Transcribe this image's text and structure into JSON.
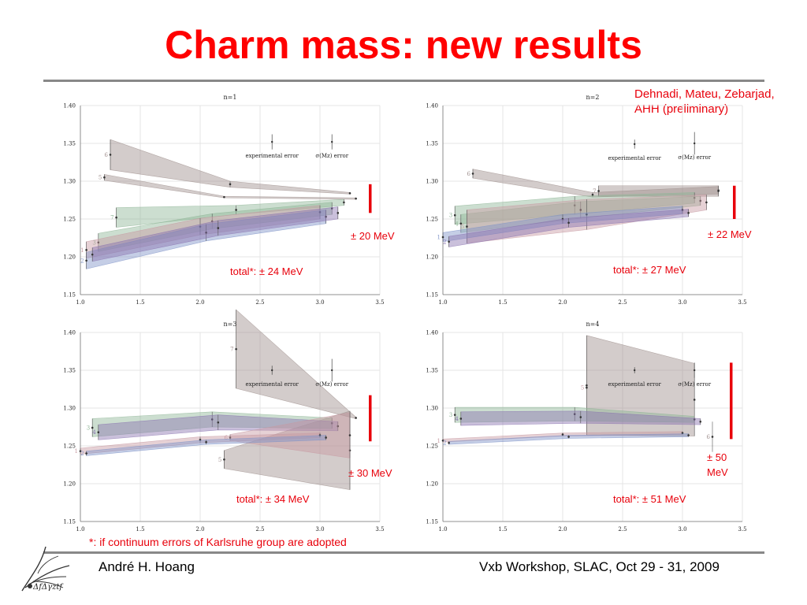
{
  "title": "Charm mass: new results",
  "authors": [
    "Dehnadi, Mateu, Zebarjad,",
    "AHH (preliminary)"
  ],
  "footnote": "*: if continuum errors of Karlsruhe group are adopted",
  "footer": {
    "left": "André H. Hoang",
    "right": "Vxb Workshop, SLAC, Oct 29 - 31, 2009"
  },
  "logo": {
    "icon": "bird-logo-icon",
    "caption": "ΔfΔγztf"
  },
  "colors": {
    "accent": "#ff0000",
    "red_bar": "#e8000b",
    "band_grey": "#9e8e8c",
    "band_green": "#8fb596",
    "band_purple": "#8a74b0",
    "band_blue": "#7f93c8",
    "band_pink": "#c79aa2"
  },
  "chart_data": [
    {
      "type": "line",
      "title": "n=1",
      "xlim": [
        1.0,
        3.5
      ],
      "ylim": [
        1.15,
        1.4
      ],
      "xticks": [
        "1.0",
        "1.5",
        "2.0",
        "2.5",
        "3.0",
        "3.5"
      ],
      "yticks": [
        "1.15",
        "1.20",
        "1.25",
        "1.30",
        "1.35",
        "1.40"
      ],
      "grid": true,
      "annotations": [
        "experimental error",
        "σ(Mz) error"
      ],
      "error_bars": [
        {
          "x": 2.6,
          "y": 1.352,
          "err": 0.01
        },
        {
          "x": 3.1,
          "y": 1.352,
          "err": 0.01
        }
      ],
      "red_bar_label": "± 20 MeV",
      "red_bar_range": [
        1.258,
        1.296
      ],
      "total_label": "total*: ± 24 MeV",
      "series": [
        {
          "label": "6",
          "color": "grey",
          "points": [
            [
              1.25,
              1.335,
              0.02
            ],
            [
              2.25,
              1.296,
              0.004
            ],
            [
              3.25,
              1.284,
              0.001
            ]
          ]
        },
        {
          "label": "5",
          "color": "grey",
          "points": [
            [
              1.2,
              1.305,
              0.004
            ],
            [
              2.2,
              1.279,
              0.001
            ],
            [
              3.3,
              1.277,
              0.001
            ]
          ]
        },
        {
          "label": "7",
          "color": "green",
          "points": [
            [
              1.3,
              1.252,
              0.013
            ],
            [
              2.3,
              1.262,
              0.006
            ],
            [
              3.2,
              1.272,
              0.004
            ]
          ]
        },
        {
          "label": "3",
          "color": "green",
          "points": [
            [
              1.15,
              1.219,
              0.012
            ],
            [
              2.1,
              1.247,
              0.01
            ],
            [
              3.1,
              1.264,
              0.008
            ]
          ]
        },
        {
          "label": "1",
          "color": "pink",
          "points": [
            [
              1.05,
              1.209,
              0.011
            ],
            [
              2.0,
              1.24,
              0.011
            ],
            [
              3.0,
              1.259,
              0.009
            ]
          ]
        },
        {
          "label": "2",
          "color": "blue",
          "points": [
            [
              1.05,
              1.195,
              0.011
            ],
            [
              2.05,
              1.232,
              0.011
            ],
            [
              3.05,
              1.253,
              0.009
            ]
          ]
        },
        {
          "label": "",
          "color": "purple",
          "points": [
            [
              1.1,
              1.203,
              0.009
            ],
            [
              2.15,
              1.238,
              0.01
            ],
            [
              3.15,
              1.258,
              0.008
            ]
          ]
        }
      ]
    },
    {
      "type": "line",
      "title": "n=2",
      "xlim": [
        1.0,
        3.5
      ],
      "ylim": [
        1.15,
        1.4
      ],
      "xticks": [
        "1.0",
        "1.5",
        "2.0",
        "2.5",
        "3.0",
        "3.5"
      ],
      "yticks": [
        "1.15",
        "1.20",
        "1.25",
        "1.30",
        "1.35",
        "1.40"
      ],
      "grid": true,
      "annotations": [
        "experimental error",
        "σ(Mz) error"
      ],
      "error_bars": [
        {
          "x": 2.6,
          "y": 1.349,
          "err": 0.006
        },
        {
          "x": 3.1,
          "y": 1.35,
          "err": 0.015
        }
      ],
      "red_bar_label": "± 22 MeV",
      "red_bar_range": [
        1.25,
        1.294
      ],
      "total_label": "total*: ± 27 MeV",
      "series": [
        {
          "label": "6",
          "color": "grey",
          "points": [
            [
              1.25,
              1.31,
              0.006
            ],
            [
              2.25,
              1.282,
              0.003
            ],
            [
              3.3,
              1.288,
              0.005
            ]
          ]
        },
        {
          "label": "7",
          "color": "grey",
          "points": [
            [
              2.3,
              1.287,
              0.007
            ],
            [
              3.3,
              1.287,
              0.007
            ]
          ]
        },
        {
          "label": "3",
          "color": "green",
          "points": [
            [
              1.1,
              1.255,
              0.012
            ],
            [
              2.1,
              1.268,
              0.012
            ],
            [
              3.1,
              1.278,
              0.007
            ]
          ]
        },
        {
          "label": "4",
          "color": "green",
          "points": [
            [
              1.15,
              1.244,
              0.012
            ],
            [
              2.15,
              1.262,
              0.011
            ],
            [
              3.15,
              1.274,
              0.006
            ]
          ]
        },
        {
          "label": "5",
          "color": "pink",
          "points": [
            [
              1.2,
              1.24,
              0.022
            ],
            [
              2.2,
              1.256,
              0.02
            ],
            [
              3.2,
              1.272,
              0.01
            ]
          ]
        },
        {
          "label": "1",
          "color": "blue",
          "points": [
            [
              1.0,
              1.226,
              0.006
            ],
            [
              2.0,
              1.25,
              0.006
            ],
            [
              3.0,
              1.262,
              0.005
            ]
          ]
        },
        {
          "label": "2",
          "color": "purple",
          "points": [
            [
              1.05,
              1.22,
              0.007
            ],
            [
              2.05,
              1.245,
              0.006
            ],
            [
              3.05,
              1.258,
              0.005
            ]
          ]
        }
      ]
    },
    {
      "type": "line",
      "title": "n=3",
      "xlim": [
        1.0,
        3.5
      ],
      "ylim": [
        1.15,
        1.4
      ],
      "xticks": [
        "1.0",
        "1.5",
        "2.0",
        "2.5",
        "3.0",
        "3.5"
      ],
      "yticks": [
        "1.15",
        "1.20",
        "1.25",
        "1.30",
        "1.35",
        "1.40"
      ],
      "grid": true,
      "annotations": [
        "experimental error",
        "σ(Mz) error"
      ],
      "error_bars": [
        {
          "x": 2.6,
          "y": 1.35,
          "err": 0.006
        },
        {
          "x": 3.1,
          "y": 1.35,
          "err": 0.015
        }
      ],
      "red_bar_label": "± 30 MeV",
      "red_bar_range": [
        1.256,
        1.317
      ],
      "total_label": "total*: ± 34 MeV",
      "series": [
        {
          "label": "7",
          "color": "grey",
          "points": [
            [
              2.3,
              1.378,
              0.052
            ],
            [
              3.3,
              1.287,
              0.001
            ]
          ]
        },
        {
          "label": "5",
          "color": "grey",
          "points": [
            [
              2.2,
              1.232,
              0.012
            ],
            [
              3.25,
              1.244,
              0.052
            ]
          ]
        },
        {
          "label": "3",
          "color": "green",
          "points": [
            [
              1.1,
              1.274,
              0.012
            ],
            [
              2.1,
              1.285,
              0.01
            ],
            [
              3.1,
              1.28,
              0.007
            ]
          ]
        },
        {
          "label": "4",
          "color": "purple",
          "points": [
            [
              1.15,
              1.268,
              0.01
            ],
            [
              2.15,
              1.281,
              0.01
            ],
            [
              3.15,
              1.276,
              0.006
            ]
          ]
        },
        {
          "label": "6",
          "color": "pink",
          "points": [
            [
              2.25,
              1.261,
              0.004
            ],
            [
              3.25,
              1.264,
              0.03
            ]
          ]
        },
        {
          "label": "1",
          "color": "pink",
          "points": [
            [
              1.0,
              1.243,
              0.004
            ],
            [
              2.0,
              1.258,
              0.004
            ],
            [
              3.0,
              1.264,
              0.003
            ]
          ]
        },
        {
          "label": "2",
          "color": "blue",
          "points": [
            [
              1.05,
              1.24,
              0.003
            ],
            [
              2.05,
              1.255,
              0.003
            ],
            [
              3.05,
              1.261,
              0.003
            ]
          ]
        }
      ]
    },
    {
      "type": "line",
      "title": "n=4",
      "xlim": [
        1.0,
        3.5
      ],
      "ylim": [
        1.15,
        1.4
      ],
      "xticks": [
        "1.0",
        "1.5",
        "2.0",
        "2.5",
        "3.0",
        "3.5"
      ],
      "yticks": [
        "1.15",
        "1.20",
        "1.25",
        "1.30",
        "1.35",
        "1.40"
      ],
      "grid": true,
      "annotations": [
        "experimental error",
        "σ(Mz) error"
      ],
      "error_bars": [
        {
          "x": 2.6,
          "y": 1.35,
          "err": 0.004
        },
        {
          "x": 3.1,
          "y": 1.35,
          "err": 0.01
        }
      ],
      "red_bar_label": "± 50 MeV",
      "red_bar_range": [
        1.259,
        1.36
      ],
      "total_label": "total*: ± 51 MeV",
      "series": [
        {
          "label": "",
          "color": "grey",
          "points": [
            [
              2.2,
              1.33,
              0.066
            ],
            [
              3.1,
              1.311,
              0.048
            ]
          ]
        },
        {
          "label": "5",
          "color": "pink",
          "points": [
            [
              2.2,
              1.327,
              0.001
            ]
          ]
        },
        {
          "label": "6",
          "color": "grey",
          "points": [
            [
              3.25,
              1.262,
              0.02
            ]
          ]
        },
        {
          "label": "3",
          "color": "green",
          "points": [
            [
              1.1,
              1.291,
              0.01
            ],
            [
              2.1,
              1.292,
              0.009
            ],
            [
              3.1,
              1.285,
              0.004
            ]
          ]
        },
        {
          "label": "4",
          "color": "purple",
          "points": [
            [
              1.15,
              1.286,
              0.009
            ],
            [
              2.15,
              1.288,
              0.008
            ],
            [
              3.15,
              1.282,
              0.004
            ]
          ]
        },
        {
          "label": "1",
          "color": "pink",
          "points": [
            [
              1.0,
              1.257,
              0.002
            ],
            [
              2.0,
              1.265,
              0.002
            ],
            [
              3.0,
              1.267,
              0.002
            ]
          ]
        },
        {
          "label": "2",
          "color": "blue",
          "points": [
            [
              1.05,
              1.254,
              0.002
            ],
            [
              2.05,
              1.262,
              0.002
            ],
            [
              3.05,
              1.264,
              0.002
            ]
          ]
        }
      ]
    }
  ]
}
